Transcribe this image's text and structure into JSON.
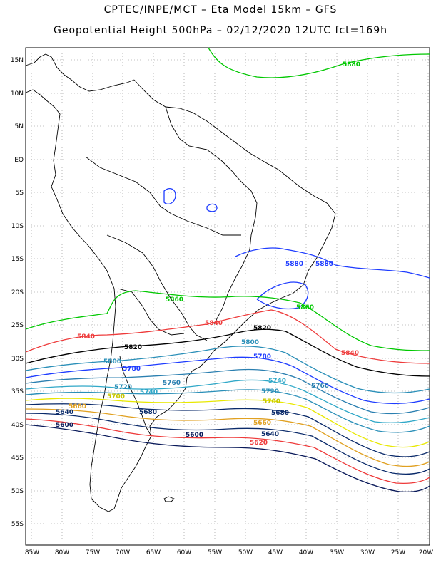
{
  "title_line1": "CPTEC/INPE/MCT  –   Eta Model 15km  –  GFS",
  "title_line2": "Geopotential Height 500hPa  –  02/12/2020 12UTC fct=169h",
  "lat_labels": [
    "15N",
    "10N",
    "5N",
    "EQ",
    "5S",
    "10S",
    "15S",
    "20S",
    "25S",
    "30S",
    "35S",
    "40S",
    "45S",
    "50S",
    "55S"
  ],
  "lon_labels": [
    "85W",
    "80W",
    "75W",
    "70W",
    "65W",
    "60W",
    "55W",
    "50W",
    "45W",
    "40W",
    "35W",
    "30W",
    "25W",
    "20W"
  ],
  "contour_levels": [
    {
      "value": "5880",
      "color": "#1e3cff"
    },
    {
      "value": "5860",
      "color": "#00c800"
    },
    {
      "value": "5840",
      "color": "#ee3a3a"
    },
    {
      "value": "5820",
      "color": "#000000"
    },
    {
      "value": "5800",
      "color": "#2a8fb8"
    },
    {
      "value": "5780",
      "color": "#1e3cff"
    },
    {
      "value": "5760",
      "color": "#2a7fb0"
    },
    {
      "value": "5740",
      "color": "#30a8c8"
    },
    {
      "value": "5720",
      "color": "#2a8fb8"
    },
    {
      "value": "5700",
      "color": "#e8e800"
    },
    {
      "value": "5680",
      "color": "#0a2a6a"
    },
    {
      "value": "5660",
      "color": "#e0a020"
    },
    {
      "value": "5640",
      "color": "#0a2a6a"
    },
    {
      "value": "5620",
      "color": "#ee3a3a"
    },
    {
      "value": "5600",
      "color": "#0a1a5a"
    }
  ],
  "contour_labels": [
    {
      "text": "5880",
      "color": "#00c800"
    },
    {
      "text": "5880",
      "color": "#1e3cff"
    },
    {
      "text": "5880",
      "color": "#1e3cff"
    },
    {
      "text": "5860",
      "color": "#00c800"
    },
    {
      "text": "5860",
      "color": "#00c800"
    },
    {
      "text": "5840",
      "color": "#ee3a3a"
    },
    {
      "text": "5840",
      "color": "#ee3a3a"
    },
    {
      "text": "5840",
      "color": "#ee3a3a"
    },
    {
      "text": "5820",
      "color": "#000000"
    },
    {
      "text": "5820",
      "color": "#000000"
    },
    {
      "text": "5800",
      "color": "#2a8fb8"
    },
    {
      "text": "5800",
      "color": "#2a8fb8"
    },
    {
      "text": "5780",
      "color": "#1e3cff"
    },
    {
      "text": "5780",
      "color": "#1e3cff"
    },
    {
      "text": "5760",
      "color": "#2a7fb0"
    },
    {
      "text": "5760",
      "color": "#2a7fb0"
    },
    {
      "text": "5740",
      "color": "#30a8c8"
    },
    {
      "text": "5740",
      "color": "#30a8c8"
    },
    {
      "text": "5720",
      "color": "#2a8fb8"
    },
    {
      "text": "5720",
      "color": "#2a8fb8"
    },
    {
      "text": "5700",
      "color": "#c8c800"
    },
    {
      "text": "5700",
      "color": "#c8c800"
    },
    {
      "text": "5680",
      "color": "#0a2a6a"
    },
    {
      "text": "5680",
      "color": "#0a2a6a"
    },
    {
      "text": "5660",
      "color": "#e0a020"
    },
    {
      "text": "5660",
      "color": "#e0a020"
    },
    {
      "text": "5640",
      "color": "#0a2a6a"
    },
    {
      "text": "5640",
      "color": "#0a2a6a"
    },
    {
      "text": "5620",
      "color": "#ee3a3a"
    },
    {
      "text": "5600",
      "color": "#0a1a5a"
    },
    {
      "text": "5600",
      "color": "#0a1a5a"
    }
  ]
}
